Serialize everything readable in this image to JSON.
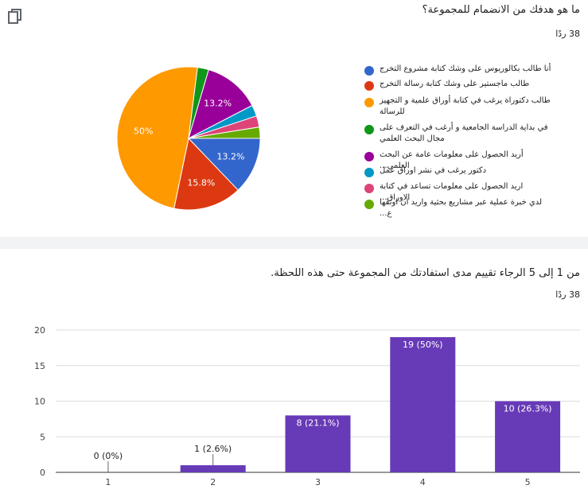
{
  "question1": {
    "title": "ما هو هدفك من الانضمام للمجموعة؟",
    "count": "38 ردًا"
  },
  "question2": {
    "title": "من 1 إلى 5 الرجاء تقييم مدى استفادتك من المجموعة حتى هذه اللحظة.",
    "count": "38 ردًا"
  },
  "copy_icon": "copy-icon",
  "chart_data": [
    {
      "type": "pie",
      "slices": [
        {
          "label": "أنا طالب بكالوريوس على وشك كتابة مشروع التخرج",
          "value": 13.2,
          "color": "#3366cc",
          "display": "13.2%"
        },
        {
          "label": "طالب ماجستير على وشك كتابة رسالة التخرج",
          "value": 15.8,
          "color": "#dc3912",
          "display": "15.8%"
        },
        {
          "label": "طالب دكتوراة يرغب في كتابة أوراق علمية و التجهيز للرسالة",
          "value": 50,
          "color": "#ff9900",
          "display": "50%"
        },
        {
          "label": "في بداية الدراسة الجامعية و أرغب في التعرف على مجال البحث العلمي",
          "value": 2.6,
          "color": "#109618",
          "display": ""
        },
        {
          "label": "أريد الحصول على معلومات عامة عن البحث العلمي...",
          "value": 13.2,
          "color": "#990099",
          "display": "13.2%"
        },
        {
          "label": "دكتور يرغب في نشر اوراق عمل",
          "value": 2.6,
          "color": "#0099c6",
          "display": ""
        },
        {
          "label": "اريد الحصول على معلومات تساعد في كتابة الاوراق...",
          "value": 2.6,
          "color": "#dd4477",
          "display": ""
        },
        {
          "label": "لدي خبرة عملية عبر مشاريع بحثية واريد ان اوثقها ع...",
          "value": 2.6,
          "color": "#66aa00",
          "display": ""
        }
      ]
    },
    {
      "type": "bar",
      "categories": [
        "1",
        "2",
        "3",
        "4",
        "5"
      ],
      "values": [
        0,
        1,
        8,
        19,
        10
      ],
      "labels": [
        "0 (0%)",
        "1 (2.6%)",
        "8 (21.1%)",
        "19 (50%)",
        "10 (26.3%)"
      ],
      "ylim": [
        0,
        20
      ],
      "yticks": [
        "0",
        "5",
        "10",
        "15",
        "20"
      ],
      "color": "#673ab7",
      "grid": true
    }
  ]
}
